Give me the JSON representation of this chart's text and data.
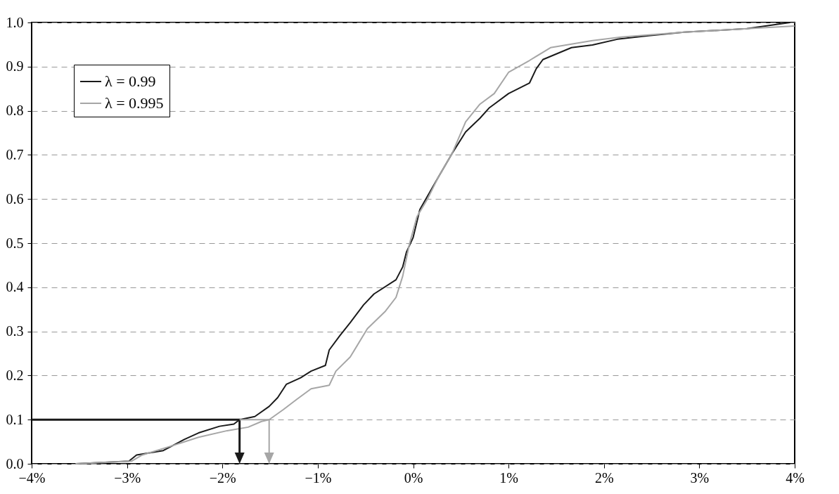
{
  "chart_data": {
    "type": "line",
    "legend": "top left",
    "grid": "y",
    "xlim": [
      -4,
      4
    ],
    "ylim": [
      0,
      1
    ],
    "xticks": [
      {
        "value": -4,
        "label": "−4%"
      },
      {
        "value": -3,
        "label": "−3%"
      },
      {
        "value": -2,
        "label": "−2%"
      },
      {
        "value": -1,
        "label": "−1%"
      },
      {
        "value": 0,
        "label": "0%"
      },
      {
        "value": 1,
        "label": "1%"
      },
      {
        "value": 2,
        "label": "2%"
      },
      {
        "value": 3,
        "label": "3%"
      },
      {
        "value": 4,
        "label": "4%"
      }
    ],
    "yticks": [
      {
        "value": 0,
        "label": "0.0"
      },
      0.1,
      0.2,
      0.3,
      0.4,
      0.5,
      0.6,
      0.7,
      0.8,
      0.9,
      {
        "value": 1,
        "label": "1.0"
      }
    ],
    "series": [
      {
        "name": "λ = 0.99",
        "color": "#1a1a1a",
        "x": [
          -3.54,
          -2.98,
          -2.9,
          -2.62,
          -2.4,
          -2.25,
          -2.03,
          -1.88,
          -1.82,
          -1.66,
          -1.51,
          -1.42,
          -1.33,
          -1.18,
          -1.07,
          -0.92,
          -0.88,
          -0.77,
          -0.66,
          -0.52,
          -0.41,
          -0.18,
          -0.11,
          -0.07,
          0,
          0.07,
          0.26,
          0.41,
          0.55,
          0.7,
          0.8,
          0.85,
          1,
          1.22,
          1.29,
          1.36,
          1.66,
          1.88,
          2.14,
          2.47,
          2.84,
          3.5,
          3.95
        ],
        "values": [
          0,
          0.006,
          0.02,
          0.03,
          0.055,
          0.07,
          0.085,
          0.09,
          0.1,
          0.107,
          0.13,
          0.15,
          0.18,
          0.195,
          0.21,
          0.223,
          0.258,
          0.29,
          0.32,
          0.36,
          0.385,
          0.417,
          0.446,
          0.48,
          0.513,
          0.576,
          0.648,
          0.704,
          0.752,
          0.783,
          0.807,
          0.815,
          0.839,
          0.863,
          0.895,
          0.916,
          0.943,
          0.949,
          0.962,
          0.97,
          0.978,
          0.986,
          1
        ]
      },
      {
        "name": "λ = 0.995",
        "color": "#a6a6a6",
        "x": [
          -3.54,
          -2.95,
          -2.84,
          -2.54,
          -2.25,
          -1.95,
          -1.73,
          -1.59,
          -1.51,
          -1.36,
          -1.22,
          -1.07,
          -0.88,
          -0.81,
          -0.66,
          -0.48,
          -0.29,
          -0.18,
          -0.11,
          -0.04,
          0.04,
          0.15,
          0.26,
          0.41,
          0.55,
          0.7,
          0.85,
          1,
          1.22,
          1.44,
          1.88,
          2.18,
          2.84,
          3.5,
          4
        ],
        "values": [
          0,
          0.006,
          0.02,
          0.04,
          0.06,
          0.075,
          0.083,
          0.096,
          0.1,
          0.123,
          0.146,
          0.17,
          0.178,
          0.21,
          0.242,
          0.306,
          0.346,
          0.377,
          0.425,
          0.497,
          0.56,
          0.6,
          0.648,
          0.704,
          0.775,
          0.815,
          0.839,
          0.887,
          0.914,
          0.943,
          0.959,
          0.967,
          0.978,
          0.986,
          0.992
        ]
      }
    ]
  }
}
